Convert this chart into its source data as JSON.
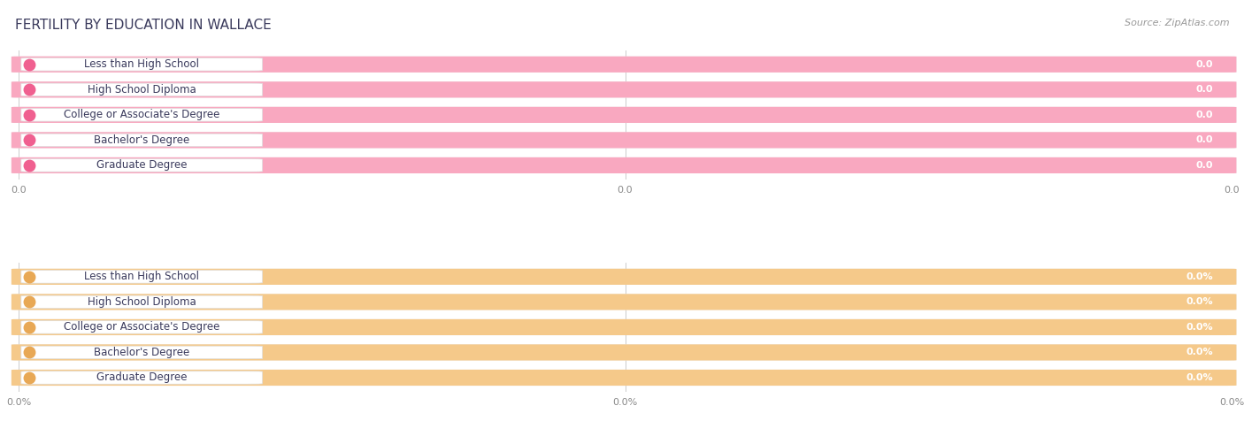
{
  "title": "FERTILITY BY EDUCATION IN WALLACE",
  "source": "Source: ZipAtlas.com",
  "categories": [
    "Less than High School",
    "High School Diploma",
    "College or Associate's Degree",
    "Bachelor's Degree",
    "Graduate Degree"
  ],
  "top_values": [
    0.0,
    0.0,
    0.0,
    0.0,
    0.0
  ],
  "bottom_values": [
    0.0,
    0.0,
    0.0,
    0.0,
    0.0
  ],
  "top_bar_color": "#F9A8C0",
  "bottom_bar_color": "#F5C98A",
  "top_dot_color": "#F06090",
  "bottom_dot_color": "#E8A855",
  "bg_color": "#FFFFFF",
  "row_bg": "#EBEBEB",
  "text_color": "#3A3A5C",
  "title_color": "#3A3A5C",
  "source_color": "#999999",
  "title_fontsize": 11,
  "label_fontsize": 8.5,
  "tick_fontsize": 8,
  "source_fontsize": 8,
  "bar_value_fontsize": 8,
  "figsize": [
    14.06,
    4.76
  ],
  "dpi": 100
}
